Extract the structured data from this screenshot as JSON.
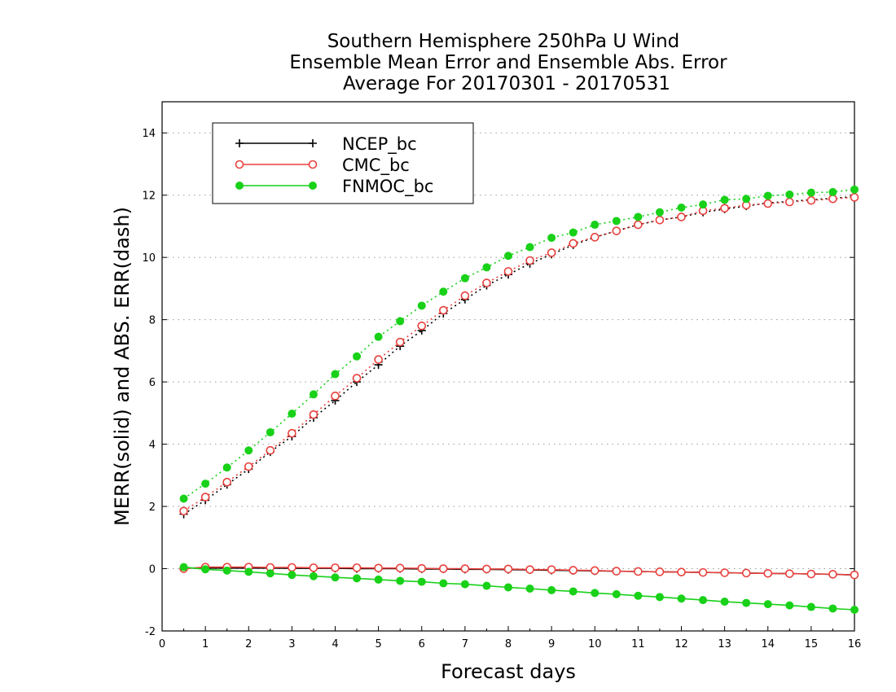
{
  "chart_data": {
    "type": "line",
    "title_lines": [
      "Southern Hemisphere 250hPa U Wind",
      "Ensemble Mean Error and Ensemble Abs. Error",
      "Average For 20170301 - 20170531"
    ],
    "xlabel": "Forecast days",
    "ylabel": "MERR(solid) and ABS. ERR(dash)",
    "xlim": [
      0,
      16
    ],
    "ylim": [
      -2,
      15
    ],
    "xticks": [
      "0",
      "1",
      "2",
      "3",
      "4",
      "5",
      "6",
      "7",
      "8",
      "9",
      "10",
      "11",
      "12",
      "13",
      "14",
      "15",
      "16"
    ],
    "yticks": [
      "-2",
      "0",
      "2",
      "4",
      "6",
      "8",
      "10",
      "12",
      "14"
    ],
    "grid": "horizontal dotted",
    "legend_position": "top-left",
    "x": [
      0.5,
      1,
      1.5,
      2,
      2.5,
      3,
      3.5,
      4,
      4.5,
      5,
      5.5,
      6,
      6.5,
      7,
      7.5,
      8,
      8.5,
      9,
      9.5,
      10,
      10.5,
      11,
      11.5,
      12,
      12.5,
      13,
      13.5,
      14,
      14.5,
      15,
      15.5,
      16
    ],
    "series": [
      {
        "name": "NCEP_bc",
        "color": "#000000",
        "marker": "plus",
        "mean_error": [
          0.02,
          0.02,
          0.02,
          0.02,
          0.02,
          0.01,
          0.01,
          0.01,
          0.0,
          0.0,
          0.0,
          -0.01,
          -0.01,
          -0.02,
          -0.02,
          -0.03,
          -0.04,
          -0.05,
          -0.06,
          -0.07,
          -0.08,
          -0.09,
          -0.1,
          -0.11,
          -0.12,
          -0.13,
          -0.14,
          -0.15,
          -0.16,
          -0.17,
          -0.18,
          -0.2
        ],
        "abs_error": [
          1.75,
          2.2,
          2.7,
          3.2,
          3.75,
          4.25,
          4.85,
          5.4,
          6.0,
          6.55,
          7.15,
          7.65,
          8.2,
          8.65,
          9.1,
          9.45,
          9.8,
          10.1,
          10.4,
          10.65,
          10.85,
          11.05,
          11.2,
          11.3,
          11.45,
          11.55,
          11.65,
          11.75,
          11.8,
          11.85,
          11.9,
          11.95
        ]
      },
      {
        "name": "CMC_bc",
        "color": "#e8413d",
        "marker": "open-circle",
        "mean_error": [
          0.0,
          0.05,
          0.05,
          0.05,
          0.04,
          0.04,
          0.03,
          0.03,
          0.03,
          0.02,
          0.02,
          0.01,
          0.0,
          0.0,
          -0.01,
          -0.01,
          -0.03,
          -0.03,
          -0.05,
          -0.06,
          -0.08,
          -0.09,
          -0.1,
          -0.11,
          -0.12,
          -0.13,
          -0.14,
          -0.15,
          -0.16,
          -0.17,
          -0.18,
          -0.2
        ],
        "abs_error": [
          1.85,
          2.3,
          2.78,
          3.28,
          3.8,
          4.35,
          4.95,
          5.55,
          6.12,
          6.72,
          7.28,
          7.8,
          8.3,
          8.77,
          9.18,
          9.55,
          9.9,
          10.15,
          10.45,
          10.65,
          10.85,
          11.05,
          11.2,
          11.3,
          11.5,
          11.58,
          11.68,
          11.73,
          11.78,
          11.83,
          11.88,
          11.93
        ]
      },
      {
        "name": "FNMOC_bc",
        "color": "#18d118",
        "marker": "filled-circle",
        "mean_error": [
          0.05,
          -0.02,
          -0.06,
          -0.1,
          -0.15,
          -0.2,
          -0.24,
          -0.28,
          -0.31,
          -0.35,
          -0.39,
          -0.42,
          -0.47,
          -0.5,
          -0.55,
          -0.6,
          -0.64,
          -0.69,
          -0.73,
          -0.78,
          -0.82,
          -0.87,
          -0.91,
          -0.96,
          -1.01,
          -1.06,
          -1.1,
          -1.14,
          -1.18,
          -1.23,
          -1.28,
          -1.32
        ],
        "abs_error": [
          2.25,
          2.73,
          3.25,
          3.8,
          4.38,
          4.98,
          5.6,
          6.25,
          6.82,
          7.45,
          7.95,
          8.45,
          8.9,
          9.33,
          9.68,
          10.05,
          10.33,
          10.63,
          10.8,
          11.05,
          11.17,
          11.3,
          11.45,
          11.6,
          11.7,
          11.85,
          11.88,
          11.98,
          12.02,
          12.08,
          12.1,
          12.18
        ]
      }
    ]
  }
}
